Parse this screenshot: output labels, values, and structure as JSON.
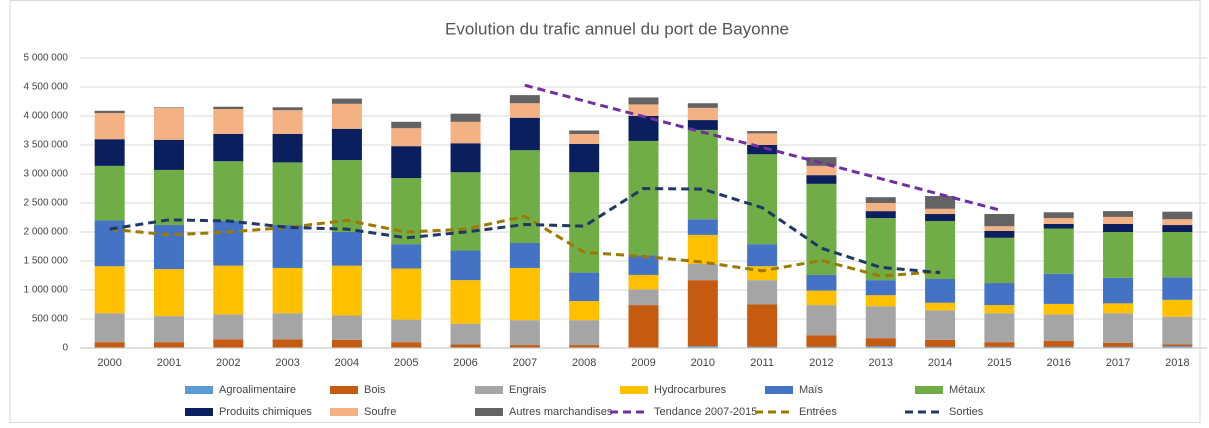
{
  "chart_data": {
    "type": "bar",
    "stacked": true,
    "title": "Evolution du trafic annuel du port de Bayonne",
    "categories": [
      "2000",
      "2001",
      "2002",
      "2003",
      "2004",
      "2005",
      "2006",
      "2007",
      "2008",
      "2009",
      "2010",
      "2011",
      "2012",
      "2013",
      "2014",
      "2015",
      "2016",
      "2017",
      "2018"
    ],
    "ylim": [
      0,
      5000000
    ],
    "yticks": [
      0,
      {
        "value": 500000,
        "label": "500 000"
      },
      {
        "value": 1000000,
        "label": "1 000 000"
      },
      {
        "value": 1500000,
        "label": "1 500 000"
      },
      {
        "value": 2000000,
        "label": "2 000 000"
      },
      {
        "value": 2500000,
        "label": "2 500 000"
      },
      {
        "value": 3000000,
        "label": "3 000 000"
      },
      {
        "value": 3500000,
        "label": "3 500 000"
      },
      {
        "value": 4000000,
        "label": "4 000 000"
      },
      {
        "value": 4500000,
        "label": "4 500 000"
      },
      {
        "value": 5000000,
        "label": "5 000 000"
      }
    ],
    "grid": true,
    "legend": "bottom",
    "series": [
      {
        "name": "Agroalimentaire",
        "type": "bar",
        "color": "#5b9bd5",
        "values": [
          10000,
          10000,
          10000,
          10000,
          10000,
          10000,
          10000,
          10000,
          10000,
          10000,
          30000,
          20000,
          20000,
          30000,
          20000,
          20000,
          20000,
          20000,
          30000
        ]
      },
      {
        "name": "Bois",
        "type": "bar",
        "color": "#c55a11",
        "values": [
          90000,
          90000,
          140000,
          140000,
          130000,
          90000,
          50000,
          40000,
          40000,
          730000,
          1140000,
          730000,
          200000,
          140000,
          120000,
          80000,
          100000,
          70000,
          30000
        ]
      },
      {
        "name": "Engrais",
        "type": "bar",
        "color": "#a5a5a5",
        "values": [
          500000,
          450000,
          430000,
          450000,
          420000,
          390000,
          360000,
          430000,
          430000,
          270000,
          280000,
          420000,
          520000,
          550000,
          510000,
          500000,
          460000,
          510000,
          480000
        ]
      },
      {
        "name": "Hydrocarbures",
        "type": "bar",
        "color": "#ffc000",
        "values": [
          810000,
          810000,
          840000,
          780000,
          860000,
          880000,
          750000,
          900000,
          330000,
          250000,
          500000,
          240000,
          250000,
          190000,
          130000,
          140000,
          180000,
          170000,
          290000
        ]
      },
      {
        "name": "Maïs",
        "type": "bar",
        "color": "#4472c4",
        "values": [
          790000,
          760000,
          770000,
          740000,
          580000,
          420000,
          510000,
          430000,
          490000,
          340000,
          270000,
          380000,
          270000,
          260000,
          410000,
          380000,
          520000,
          440000,
          390000
        ]
      },
      {
        "name": "Métaux",
        "type": "bar",
        "color": "#70ad47",
        "values": [
          940000,
          950000,
          1030000,
          1080000,
          1240000,
          1140000,
          1350000,
          1600000,
          1730000,
          1970000,
          1540000,
          1550000,
          1570000,
          1070000,
          1000000,
          780000,
          780000,
          790000,
          780000
        ]
      },
      {
        "name": "Produits chimiques",
        "type": "bar",
        "color": "#0b1f5e",
        "values": [
          460000,
          520000,
          470000,
          490000,
          540000,
          550000,
          500000,
          560000,
          490000,
          430000,
          170000,
          160000,
          150000,
          120000,
          120000,
          120000,
          80000,
          140000,
          120000
        ]
      },
      {
        "name": "Soufre",
        "type": "bar",
        "color": "#f4b183",
        "values": [
          450000,
          550000,
          430000,
          410000,
          430000,
          310000,
          370000,
          250000,
          170000,
          200000,
          210000,
          200000,
          160000,
          140000,
          90000,
          80000,
          100000,
          120000,
          100000
        ]
      },
      {
        "name": "Autres marchandises",
        "type": "bar",
        "color": "#636363",
        "values": [
          40000,
          10000,
          40000,
          50000,
          90000,
          110000,
          140000,
          140000,
          60000,
          120000,
          80000,
          40000,
          150000,
          100000,
          220000,
          210000,
          100000,
          100000,
          130000
        ]
      },
      {
        "name": "Tendance 2007-2015",
        "type": "line",
        "color": "#7030a0",
        "values": [
          null,
          null,
          null,
          null,
          null,
          null,
          null,
          4530000,
          4260000,
          3990000,
          3720000,
          3460000,
          3190000,
          2920000,
          2650000,
          2380000,
          null,
          null,
          null
        ]
      },
      {
        "name": "Entrées",
        "type": "line",
        "color": "#9c7a00",
        "values": [
          2050000,
          1950000,
          2000000,
          2080000,
          2200000,
          2000000,
          2050000,
          2270000,
          1650000,
          1580000,
          1480000,
          1330000,
          1510000,
          1240000,
          1320000,
          null,
          null,
          null,
          null
        ]
      },
      {
        "name": "Sorties",
        "type": "line",
        "color": "#1f3864",
        "values": [
          2050000,
          2210000,
          2190000,
          2080000,
          2050000,
          1900000,
          2000000,
          2130000,
          2100000,
          2750000,
          2740000,
          2420000,
          1720000,
          1390000,
          1300000,
          null,
          null,
          null,
          null
        ]
      }
    ]
  }
}
